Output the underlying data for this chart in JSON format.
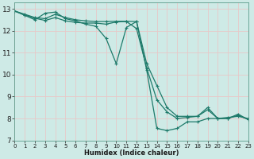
{
  "xlabel": "Humidex (Indice chaleur)",
  "bg_color": "#ceeae6",
  "grid_color": "#add4ce",
  "line_color": "#1e7a6a",
  "line1_x": [
    0,
    1,
    2,
    3,
    4,
    5,
    6,
    7,
    8,
    9,
    10,
    11,
    12,
    13,
    14,
    15,
    16,
    17,
    18,
    19,
    20,
    21,
    22,
    23
  ],
  "line1_y": [
    12.9,
    12.75,
    12.6,
    12.55,
    12.75,
    12.6,
    12.5,
    12.45,
    12.42,
    12.42,
    12.43,
    12.43,
    12.42,
    10.5,
    9.5,
    8.5,
    8.1,
    8.1,
    8.1,
    8.4,
    8.0,
    8.0,
    8.15,
    7.95
  ],
  "line2_x": [
    0,
    1,
    2,
    3,
    4,
    5,
    6,
    7,
    8,
    9,
    10,
    11,
    12,
    13,
    14,
    15,
    16,
    17,
    18,
    19,
    20,
    21,
    22,
    23
  ],
  "line2_y": [
    12.9,
    12.72,
    12.57,
    12.47,
    12.6,
    12.45,
    12.38,
    12.35,
    12.35,
    12.3,
    12.4,
    12.42,
    12.1,
    10.3,
    8.85,
    8.3,
    8.0,
    8.05,
    8.1,
    8.5,
    8.0,
    8.05,
    8.1,
    8.0
  ],
  "line3_x": [
    0,
    1,
    2,
    3,
    4,
    5,
    6,
    7,
    8,
    9,
    10,
    11,
    12,
    13,
    14,
    15,
    16,
    17,
    18,
    19,
    20,
    21,
    22,
    23
  ],
  "line3_y": [
    12.9,
    12.7,
    12.5,
    12.8,
    12.85,
    12.55,
    12.45,
    12.3,
    12.2,
    11.65,
    10.5,
    12.15,
    12.42,
    10.2,
    7.55,
    7.45,
    7.55,
    7.85,
    7.85,
    8.0,
    8.0,
    8.0,
    8.2,
    7.95
  ],
  "xlim": [
    0,
    23
  ],
  "ylim": [
    7.0,
    13.3
  ],
  "yticks": [
    7,
    8,
    9,
    10,
    11,
    12,
    13
  ],
  "xticks": [
    0,
    1,
    2,
    3,
    4,
    5,
    6,
    7,
    8,
    9,
    10,
    11,
    12,
    13,
    14,
    15,
    16,
    17,
    18,
    19,
    20,
    21,
    22,
    23
  ]
}
